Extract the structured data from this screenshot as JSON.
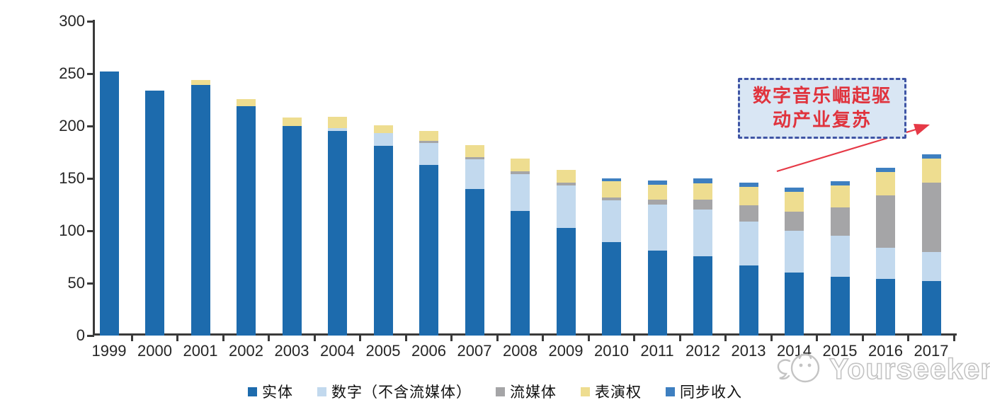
{
  "chart_data": {
    "type": "bar",
    "stacked": true,
    "categories": [
      "1999",
      "2000",
      "2001",
      "2002",
      "2003",
      "2004",
      "2005",
      "2006",
      "2007",
      "2008",
      "2009",
      "2010",
      "2011",
      "2012",
      "2013",
      "2014",
      "2015",
      "2016",
      "2017"
    ],
    "series": [
      {
        "name": "实体",
        "key": "physical",
        "color": "#1d6bad",
        "values": [
          252,
          234,
          239,
          219,
          200,
          195,
          181,
          163,
          140,
          119,
          103,
          89,
          81,
          76,
          67,
          60,
          56,
          54,
          52
        ]
      },
      {
        "name": "数字（不含流媒体）",
        "key": "digital-excl-streaming",
        "color": "#c2d9ee",
        "values": [
          0,
          0,
          0,
          0,
          0,
          3,
          12,
          21,
          28,
          35,
          40,
          40,
          44,
          44,
          42,
          40,
          39,
          30,
          28
        ]
      },
      {
        "name": "流媒体",
        "key": "streaming",
        "color": "#a5a5a7",
        "values": [
          0,
          0,
          0,
          0,
          0,
          0,
          0,
          2,
          2,
          3,
          3,
          3,
          5,
          10,
          15,
          18,
          27,
          50,
          66
        ]
      },
      {
        "name": "表演权",
        "key": "performance-rights",
        "color": "#eedd90",
        "values": [
          0,
          0,
          5,
          7,
          8,
          11,
          8,
          9,
          12,
          12,
          12,
          15,
          14,
          15,
          18,
          19,
          21,
          22,
          23
        ]
      },
      {
        "name": "同步收入",
        "key": "sync-revenue",
        "color": "#3e7fc0",
        "values": [
          0,
          0,
          0,
          0,
          0,
          0,
          0,
          0,
          0,
          0,
          0,
          3,
          4,
          5,
          4,
          4,
          4,
          4,
          4
        ]
      }
    ],
    "totals": [
      252,
      234,
      244,
      226,
      208,
      209,
      201,
      195,
      182,
      169,
      158,
      150,
      148,
      150,
      146,
      141,
      147,
      160,
      173
    ],
    "ylim": [
      0,
      300
    ],
    "yticks": [
      0,
      50,
      100,
      150,
      200,
      250,
      300
    ],
    "xlabel": "",
    "ylabel": "",
    "grid": false,
    "legend_position": "bottom"
  },
  "annotation": {
    "line1": "数字音乐崛起驱",
    "line2": "动产业复苏",
    "text_color": "#e0333d",
    "border_color": "#3f55a5",
    "fill_color": "#d9e6f4",
    "arrow_color": "#e63946"
  },
  "watermark": {
    "text": "Yourseeker"
  },
  "colors": {
    "axis": "#3a3a3a"
  }
}
